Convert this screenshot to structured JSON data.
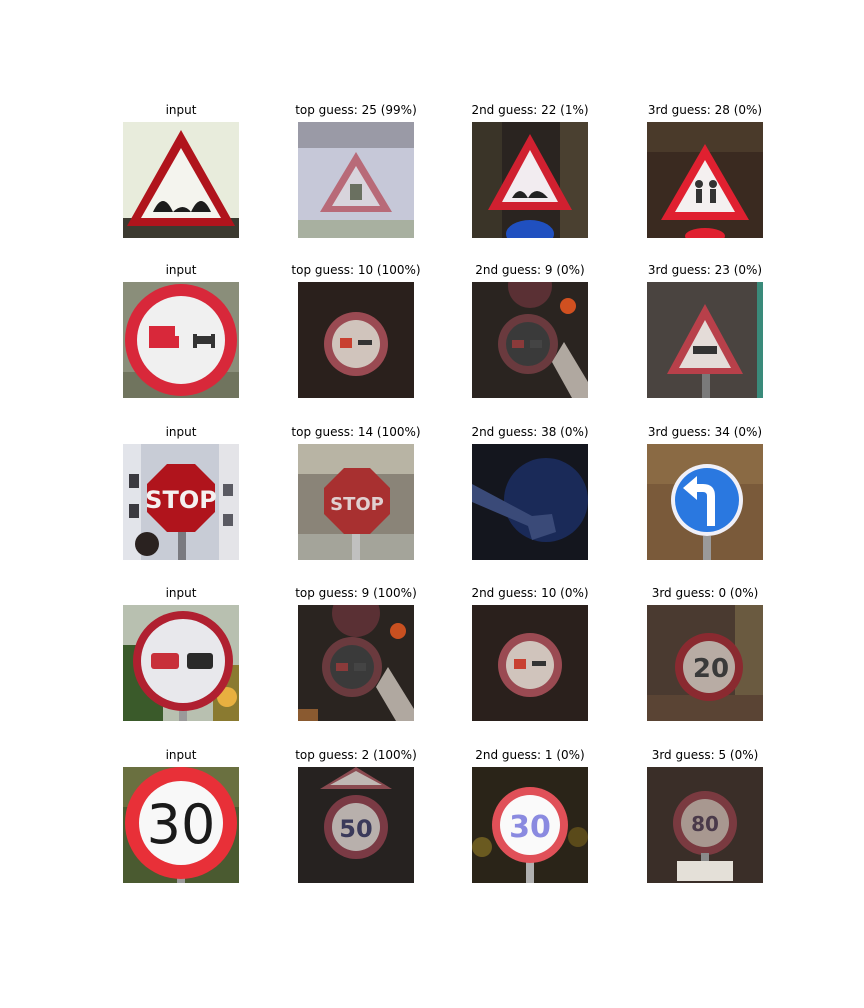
{
  "grid": {
    "rows": [
      {
        "cells": [
          {
            "caption": "input",
            "icon": "bumpy-road-warning-sign"
          },
          {
            "caption": "top guess: 25 (99%)",
            "icon": "road-work-warning-sign"
          },
          {
            "caption": "2nd guess: 22 (1%)",
            "icon": "bumpy-road-warning-sign"
          },
          {
            "caption": "3rd guess: 28 (0%)",
            "icon": "children-crossing-warning-sign"
          }
        ]
      },
      {
        "cells": [
          {
            "caption": "input",
            "icon": "no-overtaking-trucks-sign"
          },
          {
            "caption": "top guess: 10 (100%)",
            "icon": "no-overtaking-trucks-sign"
          },
          {
            "caption": "2nd guess: 9 (0%)",
            "icon": "no-overtaking-sign"
          },
          {
            "caption": "3rd guess: 23 (0%)",
            "icon": "slippery-road-warning-sign"
          }
        ]
      },
      {
        "cells": [
          {
            "caption": "input",
            "icon": "stop-sign"
          },
          {
            "caption": "top guess: 14 (100%)",
            "icon": "stop-sign"
          },
          {
            "caption": "2nd guess: 38 (0%)",
            "icon": "keep-right-sign"
          },
          {
            "caption": "3rd guess: 34 (0%)",
            "icon": "turn-left-ahead-sign"
          }
        ]
      },
      {
        "cells": [
          {
            "caption": "input",
            "icon": "no-overtaking-sign"
          },
          {
            "caption": "top guess: 9 (100%)",
            "icon": "no-overtaking-sign"
          },
          {
            "caption": "2nd guess: 10 (0%)",
            "icon": "no-overtaking-trucks-sign"
          },
          {
            "caption": "3rd guess: 0 (0%)",
            "icon": "speed-limit-20-sign"
          }
        ]
      },
      {
        "cells": [
          {
            "caption": "input",
            "icon": "speed-limit-30-sign"
          },
          {
            "caption": "top guess: 2 (100%)",
            "icon": "speed-limit-50-sign"
          },
          {
            "caption": "2nd guess: 1 (0%)",
            "icon": "speed-limit-30-sign"
          },
          {
            "caption": "3rd guess: 5 (0%)",
            "icon": "speed-limit-80-sign"
          }
        ]
      }
    ]
  }
}
